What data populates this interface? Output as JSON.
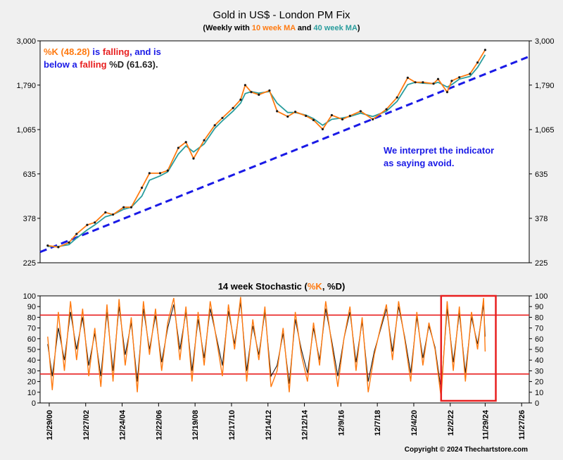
{
  "chart_data": [
    {
      "type": "line",
      "title": "Gold in US$ - London PM Fix",
      "subtitle_parts": [
        "(Weekly with ",
        "10 week MA",
        " and ",
        "40 week MA",
        ")"
      ],
      "y_scale": "log",
      "ylim": [
        225,
        3000
      ],
      "y_ticks": [
        "3,000",
        "1,790",
        "1,065",
        "635",
        "378",
        "225"
      ],
      "y_tick_values": [
        3000,
        1790,
        1065,
        635,
        378,
        225
      ],
      "x_range": [
        "2000-06",
        "2027-04"
      ],
      "grid": false,
      "series": [
        {
          "name": "10 week MA",
          "x": [
            "2000-11",
            "2001-06",
            "2002-01",
            "2002-06",
            "2003-01",
            "2003-06",
            "2004-01",
            "2004-06",
            "2005-01",
            "2005-06",
            "2006-01",
            "2006-06",
            "2007-01",
            "2007-06",
            "2008-01",
            "2008-06",
            "2008-11",
            "2009-06",
            "2010-01",
            "2010-06",
            "2011-01",
            "2011-06",
            "2011-09",
            "2012-01",
            "2012-06",
            "2013-01",
            "2013-06",
            "2014-01",
            "2014-06",
            "2015-01",
            "2015-06",
            "2015-12",
            "2016-06",
            "2017-01",
            "2017-06",
            "2018-01",
            "2018-09",
            "2019-06",
            "2020-01",
            "2020-08",
            "2021-01",
            "2021-06",
            "2022-01",
            "2022-04",
            "2022-10",
            "2023-01",
            "2023-06",
            "2024-01",
            "2024-06",
            "2024-11"
          ],
          "y": [
            275,
            270,
            285,
            315,
            350,
            360,
            405,
            395,
            430,
            430,
            540,
            640,
            640,
            660,
            860,
            920,
            760,
            940,
            1120,
            1220,
            1370,
            1510,
            1790,
            1650,
            1600,
            1680,
            1320,
            1240,
            1310,
            1250,
            1190,
            1070,
            1260,
            1200,
            1250,
            1320,
            1200,
            1350,
            1550,
            1950,
            1850,
            1850,
            1820,
            1920,
            1650,
            1880,
            1960,
            2040,
            2330,
            2700
          ]
        },
        {
          "name": "40 week MA",
          "x": [
            "2000-11",
            "2001-06",
            "2002-01",
            "2002-06",
            "2003-01",
            "2003-06",
            "2004-01",
            "2004-06",
            "2005-01",
            "2005-06",
            "2006-01",
            "2006-06",
            "2007-01",
            "2007-06",
            "2008-01",
            "2008-06",
            "2008-11",
            "2009-06",
            "2010-01",
            "2010-06",
            "2011-01",
            "2011-06",
            "2011-09",
            "2012-01",
            "2012-06",
            "2013-01",
            "2013-06",
            "2014-01",
            "2014-06",
            "2015-01",
            "2015-06",
            "2015-12",
            "2016-06",
            "2017-01",
            "2017-06",
            "2018-01",
            "2018-09",
            "2019-06",
            "2020-01",
            "2020-08",
            "2021-01",
            "2021-06",
            "2022-01",
            "2022-04",
            "2022-10",
            "2023-01",
            "2023-06",
            "2024-01",
            "2024-06",
            "2024-11"
          ],
          "y": [
            272,
            272,
            278,
            300,
            330,
            350,
            385,
            395,
            420,
            430,
            490,
            590,
            620,
            650,
            800,
            880,
            820,
            900,
            1080,
            1180,
            1320,
            1450,
            1620,
            1660,
            1630,
            1660,
            1450,
            1300,
            1300,
            1260,
            1210,
            1120,
            1200,
            1220,
            1240,
            1290,
            1240,
            1320,
            1480,
            1800,
            1850,
            1830,
            1820,
            1850,
            1750,
            1800,
            1920,
            1980,
            2200,
            2550
          ]
        }
      ],
      "trendline": {
        "x": [
          "2000-06",
          "2027-04"
        ],
        "y": [
          255,
          2500
        ]
      },
      "annotations": [
        {
          "parts": [
            {
              "text": "%K (48.28)",
              "color": "#ff7a10"
            },
            {
              "text": " is ",
              "color": "#1a1ae6"
            },
            {
              "text": "falling",
              "color": "#e82020"
            },
            {
              "text": ", and is",
              "color": "#1a1ae6"
            }
          ]
        },
        {
          "parts": [
            {
              "text": "below a ",
              "color": "#1a1ae6"
            },
            {
              "text": "falling",
              "color": "#e82020"
            },
            {
              "text": " %D (61.63).",
              "color": "#222222"
            }
          ]
        },
        {
          "parts": [
            {
              "text": "We interpret the indicator",
              "color": "#1a1ae6"
            }
          ]
        },
        {
          "parts": [
            {
              "text": "as saying avoid.",
              "color": "#1a1ae6"
            }
          ]
        }
      ]
    },
    {
      "type": "line",
      "title_parts": [
        "14 week Stochastic (",
        "%K",
        ", %D)"
      ],
      "ylim": [
        0,
        100
      ],
      "y_ticks": [
        "100",
        "90",
        "80",
        "70",
        "60",
        "50",
        "40",
        "30",
        "20",
        "10",
        "0"
      ],
      "y_tick_values": [
        100,
        90,
        80,
        70,
        60,
        50,
        40,
        30,
        20,
        10,
        0
      ],
      "reference_lines": [
        82,
        27
      ],
      "highlight_box": {
        "x": [
          "2022-06",
          "2025-06"
        ],
        "y": [
          2,
          100
        ]
      },
      "x_tick_labels": [
        "12/29/00",
        "12/27/02",
        "12/24/04",
        "12/22/06",
        "12/19/08",
        "12/17/10",
        "12/14/12",
        "12/12/14",
        "12/9/16",
        "12/7/18",
        "12/4/20",
        "12/2/22",
        "11/29/24",
        "11/27/26"
      ],
      "x_tick_dates": [
        "2000-12",
        "2002-12",
        "2004-12",
        "2006-12",
        "2008-12",
        "2010-12",
        "2012-12",
        "2014-12",
        "2016-12",
        "2018-12",
        "2020-12",
        "2022-12",
        "2024-11",
        "2026-11"
      ],
      "series": [
        {
          "name": "%K",
          "x": [
            "2000-11",
            "2001-02",
            "2001-06",
            "2001-10",
            "2002-02",
            "2002-06",
            "2002-10",
            "2003-02",
            "2003-06",
            "2003-10",
            "2004-02",
            "2004-06",
            "2004-10",
            "2005-02",
            "2005-06",
            "2005-10",
            "2006-02",
            "2006-06",
            "2006-10",
            "2007-02",
            "2007-06",
            "2007-10",
            "2008-02",
            "2008-06",
            "2008-10",
            "2009-02",
            "2009-06",
            "2009-10",
            "2010-02",
            "2010-06",
            "2010-10",
            "2011-02",
            "2011-06",
            "2011-10",
            "2012-02",
            "2012-06",
            "2012-10",
            "2013-02",
            "2013-06",
            "2013-10",
            "2014-02",
            "2014-06",
            "2014-10",
            "2015-02",
            "2015-06",
            "2015-10",
            "2016-02",
            "2016-06",
            "2016-10",
            "2017-02",
            "2017-06",
            "2017-10",
            "2018-02",
            "2018-06",
            "2018-10",
            "2019-02",
            "2019-06",
            "2019-10",
            "2020-02",
            "2020-06",
            "2020-10",
            "2021-02",
            "2021-06",
            "2021-10",
            "2022-02",
            "2022-06",
            "2022-10",
            "2023-02",
            "2023-06",
            "2023-10",
            "2024-02",
            "2024-06",
            "2024-10",
            "2024-11"
          ],
          "y": [
            62,
            12,
            85,
            30,
            95,
            40,
            88,
            25,
            70,
            15,
            92,
            20,
            97,
            35,
            80,
            10,
            95,
            45,
            88,
            30,
            75,
            98,
            40,
            90,
            20,
            85,
            35,
            95,
            60,
            25,
            92,
            50,
            99,
            20,
            78,
            40,
            90,
            15,
            30,
            70,
            10,
            85,
            45,
            20,
            75,
            35,
            95,
            55,
            15,
            60,
            90,
            30,
            80,
            10,
            45,
            70,
            92,
            40,
            95,
            60,
            20,
            85,
            35,
            75,
            50,
            5,
            95,
            30,
            90,
            20,
            85,
            50,
            98,
            48
          ]
        },
        {
          "name": "%D",
          "x": [
            "2000-11",
            "2001-02",
            "2001-06",
            "2001-10",
            "2002-02",
            "2002-06",
            "2002-10",
            "2003-02",
            "2003-06",
            "2003-10",
            "2004-02",
            "2004-06",
            "2004-10",
            "2005-02",
            "2005-06",
            "2005-10",
            "2006-02",
            "2006-06",
            "2006-10",
            "2007-02",
            "2007-06",
            "2007-10",
            "2008-02",
            "2008-06",
            "2008-10",
            "2009-02",
            "2009-06",
            "2009-10",
            "2010-02",
            "2010-06",
            "2010-10",
            "2011-02",
            "2011-06",
            "2011-10",
            "2012-02",
            "2012-06",
            "2012-10",
            "2013-02",
            "2013-06",
            "2013-10",
            "2014-02",
            "2014-06",
            "2014-10",
            "2015-02",
            "2015-06",
            "2015-10",
            "2016-02",
            "2016-06",
            "2016-10",
            "2017-02",
            "2017-06",
            "2017-10",
            "2018-02",
            "2018-06",
            "2018-10",
            "2019-02",
            "2019-06",
            "2019-10",
            "2020-02",
            "2020-06",
            "2020-10",
            "2021-02",
            "2021-06",
            "2021-10",
            "2022-02",
            "2022-06",
            "2022-10",
            "2023-02",
            "2023-06",
            "2023-10",
            "2024-02",
            "2024-06",
            "2024-10",
            "2024-11"
          ],
          "y": [
            55,
            25,
            70,
            40,
            85,
            50,
            80,
            35,
            65,
            25,
            85,
            30,
            90,
            45,
            75,
            20,
            88,
            50,
            82,
            38,
            70,
            92,
            50,
            85,
            30,
            78,
            42,
            88,
            62,
            35,
            86,
            55,
            94,
            30,
            72,
            45,
            85,
            25,
            35,
            65,
            18,
            78,
            50,
            28,
            70,
            40,
            88,
            58,
            25,
            60,
            85,
            38,
            76,
            20,
            48,
            68,
            88,
            48,
            90,
            62,
            28,
            80,
            42,
            72,
            52,
            12,
            88,
            38,
            84,
            28,
            80,
            55,
            92,
            62
          ]
        }
      ]
    }
  ],
  "copyright": "Copyright © 2024 Thechartstore.com",
  "colors": {
    "price": "#1a1a1a",
    "ma10": "#ff7a10",
    "ma40": "#2a9d9d",
    "trend": "#1a1ae6",
    "red": "#e82020"
  }
}
